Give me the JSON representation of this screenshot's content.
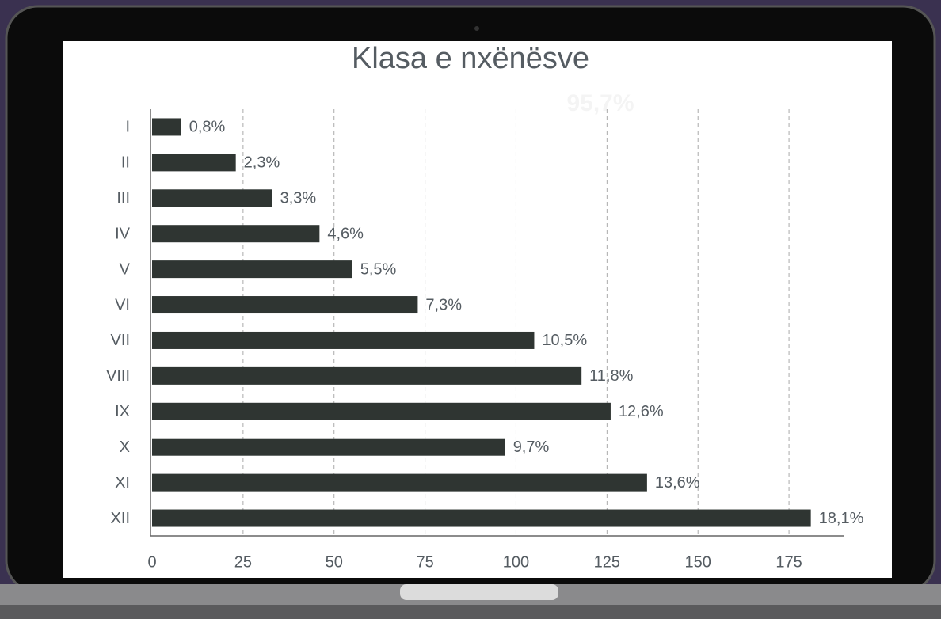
{
  "chart_data": {
    "type": "barh",
    "title": "Klasa e nxënësve",
    "annotation": "95,7%",
    "categories": [
      "I",
      "II",
      "III",
      "IV",
      "V",
      "VI",
      "VII",
      "VIII",
      "IX",
      "X",
      "XI",
      "XII"
    ],
    "values": [
      8,
      23,
      33,
      46,
      55,
      73,
      105,
      118,
      126,
      97,
      136,
      181
    ],
    "value_labels": [
      "0,8%",
      "2,3%",
      "3,3%",
      "4,6%",
      "5,5%",
      "7,3%",
      "10,5%",
      "11,8%",
      "12,6%",
      "9,7%",
      "13,6%",
      "18,1%"
    ],
    "color": "#2f3532",
    "xlim": [
      0,
      190
    ],
    "xticks": [
      0,
      25,
      50,
      75,
      100,
      125,
      150,
      175
    ],
    "grid": true
  }
}
